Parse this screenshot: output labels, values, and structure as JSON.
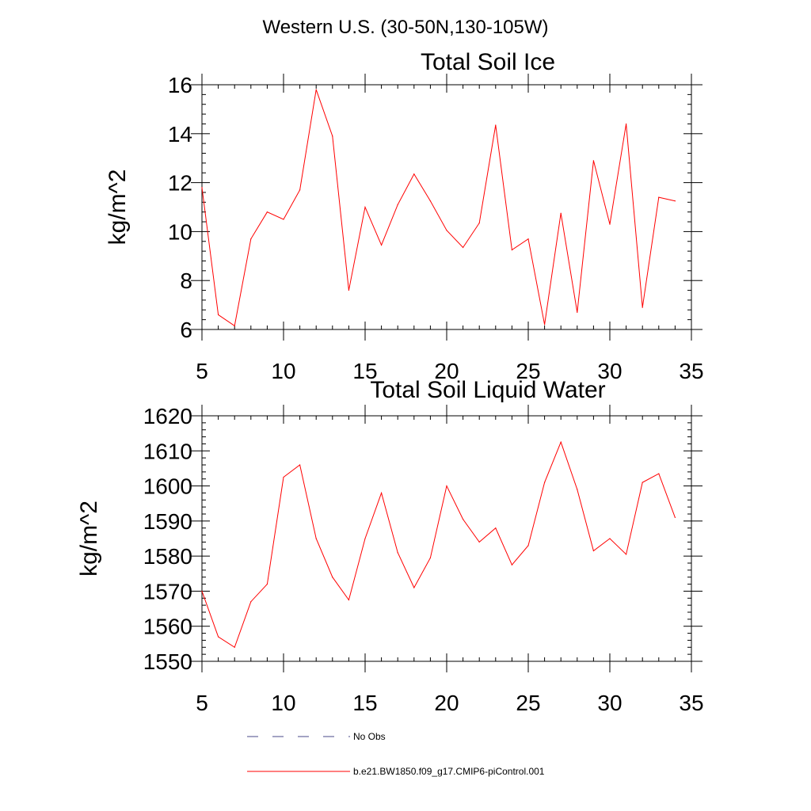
{
  "title": "Western U.S. (30-50N,130-105W)",
  "legend": {
    "items": [
      {
        "label": "No Obs",
        "style": "dashed",
        "color": "#4a4a8a"
      },
      {
        "label": "b.e21.BW1850.f09_g17.CMIP6-piControl.001",
        "style": "solid",
        "color": "#ff0000"
      }
    ]
  },
  "chart_data": [
    {
      "type": "line",
      "title": "Total Soil Ice",
      "xlabel": "",
      "ylabel": "kg/m^2",
      "xlim": [
        5,
        35
      ],
      "ylim": [
        6,
        16
      ],
      "xticks": [
        5,
        10,
        15,
        20,
        25,
        30,
        35
      ],
      "yticks": [
        6,
        8,
        10,
        12,
        14,
        16
      ],
      "series": [
        {
          "name": "b.e21.BW1850.f09_g17.CMIP6-piControl.001",
          "color": "#ff0000",
          "x": [
            5,
            6,
            7,
            8,
            9,
            10,
            11,
            12,
            13,
            14,
            15,
            16,
            17,
            18,
            19,
            20,
            21,
            22,
            23,
            24,
            25,
            26,
            27,
            28,
            29,
            30,
            31,
            32,
            33,
            34
          ],
          "values": [
            11.8,
            6.6,
            6.15,
            9.7,
            10.8,
            10.5,
            11.7,
            15.8,
            13.9,
            7.6,
            11.0,
            9.45,
            11.1,
            12.35,
            11.25,
            10.05,
            9.35,
            10.35,
            14.35,
            9.25,
            9.7,
            6.2,
            10.75,
            6.7,
            12.9,
            10.3,
            14.4,
            6.9,
            11.4,
            11.25
          ]
        }
      ]
    },
    {
      "type": "line",
      "title": "Total Soil Liquid Water",
      "xlabel": "",
      "ylabel": "kg/m^2",
      "xlim": [
        5,
        35
      ],
      "ylim": [
        1550,
        1620
      ],
      "xticks": [
        5,
        10,
        15,
        20,
        25,
        30,
        35
      ],
      "yticks": [
        1550,
        1560,
        1570,
        1580,
        1590,
        1600,
        1610,
        1620
      ],
      "series": [
        {
          "name": "b.e21.BW1850.f09_g17.CMIP6-piControl.001",
          "color": "#ff0000",
          "x": [
            5,
            6,
            7,
            8,
            9,
            10,
            11,
            12,
            13,
            14,
            15,
            16,
            17,
            18,
            19,
            20,
            21,
            22,
            23,
            24,
            25,
            26,
            27,
            28,
            29,
            30,
            31,
            32,
            33,
            34
          ],
          "values": [
            1570,
            1557,
            1554,
            1567,
            1572,
            1602.5,
            1606,
            1585,
            1574,
            1567.5,
            1585,
            1598,
            1581,
            1571,
            1579.5,
            1600,
            1590.5,
            1584,
            1588,
            1577.5,
            1583,
            1601,
            1612.5,
            1599,
            1581.5,
            1585,
            1580.5,
            1601,
            1603.5,
            1591
          ]
        }
      ]
    }
  ]
}
